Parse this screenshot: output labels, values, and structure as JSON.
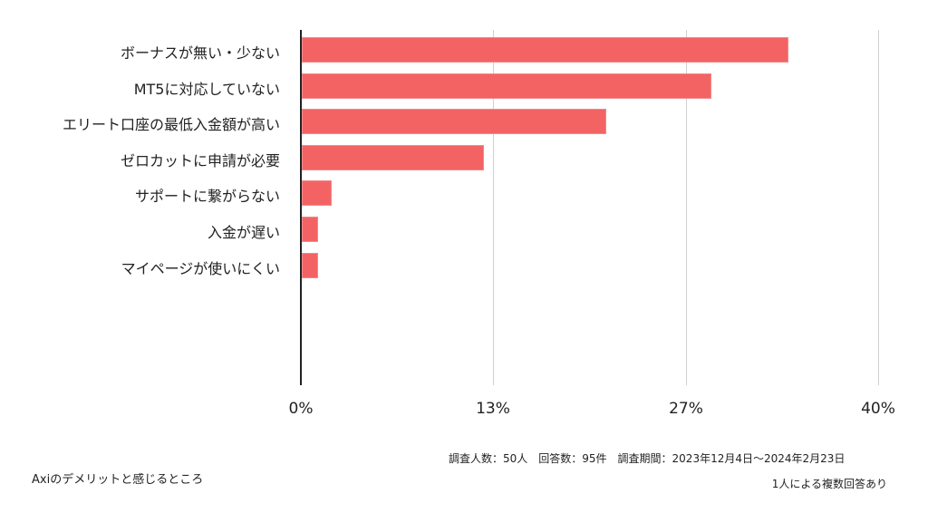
{
  "chart_data": {
    "type": "bar",
    "orientation": "horizontal",
    "title": "Axiのデメリットと感じるところ",
    "categories": [
      "ボーナスが無い・少ない",
      "MT5に対応していない",
      "エリート口座の最低入金額が高い",
      "ゼロカットに申請が必要",
      "サポートに繋がらない",
      "入金が遅い",
      "マイページが使いにくい"
    ],
    "values": [
      33.7,
      28.4,
      21.1,
      12.6,
      2.1,
      1.1,
      1.1
    ],
    "counts": [
      32,
      27,
      20,
      12,
      2,
      1,
      1
    ],
    "unit": "%",
    "xlabel": "",
    "ylabel": "",
    "xlim": [
      0,
      40
    ],
    "xticks": [
      "0%",
      "13%",
      "27%",
      "40%"
    ],
    "xtick_values": [
      0,
      13.33,
      26.67,
      40
    ],
    "grid": true,
    "legend": null,
    "bar_color": "#f46364"
  },
  "footer": {
    "title": "Axiのデメリットと感じるところ",
    "survey_info": "調査人数：50人　回答数：95件　調査期間：2023年12月4日〜2024年2月23日",
    "note": "1人による複数回答あり"
  }
}
